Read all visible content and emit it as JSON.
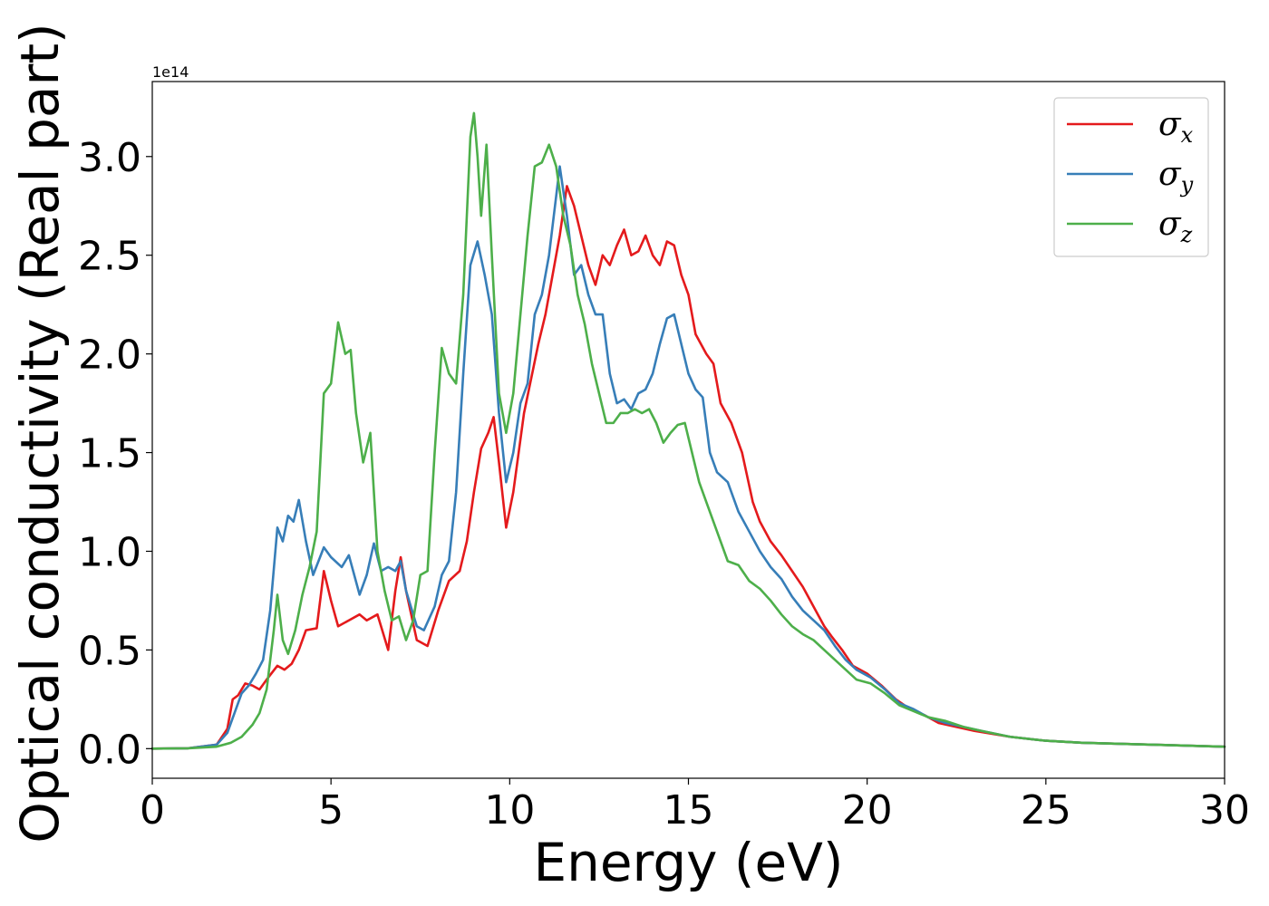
{
  "chart_data": {
    "type": "line",
    "xlabel": "Energy (eV)",
    "ylabel": "Optical conductivity (Real part)",
    "y_offset_label": "1e14",
    "xlim": [
      0,
      30
    ],
    "ylim": [
      -0.15,
      3.38
    ],
    "xticks": [
      0,
      5,
      10,
      15,
      20,
      25,
      30
    ],
    "yticks": [
      0.0,
      0.5,
      1.0,
      1.5,
      2.0,
      2.5,
      3.0
    ],
    "xtick_labels": [
      "0",
      "5",
      "10",
      "15",
      "20",
      "25",
      "30"
    ],
    "ytick_labels": [
      "0.0",
      "0.5",
      "1.0",
      "1.5",
      "2.0",
      "2.5",
      "3.0"
    ],
    "grid": false,
    "legend_position": "top-right",
    "series": [
      {
        "name": "σx",
        "name_base": "σ",
        "name_sub": "x",
        "color": "#e41a1c",
        "points": [
          [
            0,
            0
          ],
          [
            1,
            0.002
          ],
          [
            1.8,
            0.02
          ],
          [
            2.1,
            0.1
          ],
          [
            2.25,
            0.25
          ],
          [
            2.4,
            0.27
          ],
          [
            2.6,
            0.33
          ],
          [
            2.8,
            0.32
          ],
          [
            3.0,
            0.3
          ],
          [
            3.2,
            0.35
          ],
          [
            3.5,
            0.42
          ],
          [
            3.7,
            0.4
          ],
          [
            3.9,
            0.43
          ],
          [
            4.1,
            0.5
          ],
          [
            4.3,
            0.6
          ],
          [
            4.6,
            0.61
          ],
          [
            4.8,
            0.9
          ],
          [
            5.0,
            0.75
          ],
          [
            5.2,
            0.62
          ],
          [
            5.5,
            0.65
          ],
          [
            5.8,
            0.68
          ],
          [
            6.0,
            0.65
          ],
          [
            6.3,
            0.68
          ],
          [
            6.6,
            0.5
          ],
          [
            6.8,
            0.8
          ],
          [
            6.95,
            0.97
          ],
          [
            7.1,
            0.8
          ],
          [
            7.4,
            0.55
          ],
          [
            7.7,
            0.52
          ],
          [
            8.0,
            0.7
          ],
          [
            8.3,
            0.85
          ],
          [
            8.6,
            0.9
          ],
          [
            8.8,
            1.05
          ],
          [
            9.0,
            1.3
          ],
          [
            9.2,
            1.52
          ],
          [
            9.4,
            1.6
          ],
          [
            9.55,
            1.68
          ],
          [
            9.7,
            1.45
          ],
          [
            9.9,
            1.12
          ],
          [
            10.1,
            1.3
          ],
          [
            10.4,
            1.7
          ],
          [
            10.8,
            2.05
          ],
          [
            11.0,
            2.2
          ],
          [
            11.2,
            2.4
          ],
          [
            11.4,
            2.6
          ],
          [
            11.6,
            2.85
          ],
          [
            11.8,
            2.75
          ],
          [
            12.0,
            2.6
          ],
          [
            12.2,
            2.45
          ],
          [
            12.4,
            2.35
          ],
          [
            12.6,
            2.5
          ],
          [
            12.8,
            2.45
          ],
          [
            13.0,
            2.55
          ],
          [
            13.2,
            2.63
          ],
          [
            13.4,
            2.5
          ],
          [
            13.6,
            2.52
          ],
          [
            13.8,
            2.6
          ],
          [
            14.0,
            2.5
          ],
          [
            14.2,
            2.45
          ],
          [
            14.4,
            2.57
          ],
          [
            14.6,
            2.55
          ],
          [
            14.8,
            2.4
          ],
          [
            15.0,
            2.3
          ],
          [
            15.2,
            2.1
          ],
          [
            15.5,
            2.0
          ],
          [
            15.7,
            1.95
          ],
          [
            15.9,
            1.75
          ],
          [
            16.2,
            1.65
          ],
          [
            16.5,
            1.5
          ],
          [
            16.8,
            1.25
          ],
          [
            17.0,
            1.15
          ],
          [
            17.3,
            1.05
          ],
          [
            17.6,
            0.98
          ],
          [
            17.9,
            0.9
          ],
          [
            18.2,
            0.82
          ],
          [
            18.5,
            0.72
          ],
          [
            18.8,
            0.62
          ],
          [
            19.0,
            0.57
          ],
          [
            19.3,
            0.5
          ],
          [
            19.6,
            0.42
          ],
          [
            20.0,
            0.38
          ],
          [
            20.4,
            0.32
          ],
          [
            20.8,
            0.25
          ],
          [
            21.2,
            0.2
          ],
          [
            21.6,
            0.17
          ],
          [
            22.0,
            0.13
          ],
          [
            22.5,
            0.11
          ],
          [
            23.0,
            0.09
          ],
          [
            24.0,
            0.06
          ],
          [
            25.0,
            0.04
          ],
          [
            26.0,
            0.03
          ],
          [
            28.0,
            0.02
          ],
          [
            30.0,
            0.01
          ]
        ]
      },
      {
        "name": "σy",
        "name_base": "σ",
        "name_sub": "y",
        "color": "#377eb8",
        "points": [
          [
            0,
            0
          ],
          [
            1,
            0.002
          ],
          [
            1.8,
            0.02
          ],
          [
            2.1,
            0.08
          ],
          [
            2.3,
            0.18
          ],
          [
            2.5,
            0.28
          ],
          [
            2.7,
            0.32
          ],
          [
            2.9,
            0.38
          ],
          [
            3.1,
            0.45
          ],
          [
            3.3,
            0.7
          ],
          [
            3.5,
            1.12
          ],
          [
            3.65,
            1.05
          ],
          [
            3.8,
            1.18
          ],
          [
            3.95,
            1.15
          ],
          [
            4.1,
            1.26
          ],
          [
            4.3,
            1.05
          ],
          [
            4.5,
            0.88
          ],
          [
            4.8,
            1.02
          ],
          [
            5.0,
            0.97
          ],
          [
            5.3,
            0.92
          ],
          [
            5.5,
            0.98
          ],
          [
            5.8,
            0.78
          ],
          [
            6.0,
            0.88
          ],
          [
            6.2,
            1.04
          ],
          [
            6.4,
            0.9
          ],
          [
            6.6,
            0.92
          ],
          [
            6.8,
            0.9
          ],
          [
            6.95,
            0.95
          ],
          [
            7.1,
            0.8
          ],
          [
            7.4,
            0.62
          ],
          [
            7.6,
            0.6
          ],
          [
            7.9,
            0.72
          ],
          [
            8.1,
            0.88
          ],
          [
            8.3,
            0.95
          ],
          [
            8.5,
            1.3
          ],
          [
            8.7,
            1.9
          ],
          [
            8.9,
            2.45
          ],
          [
            9.1,
            2.57
          ],
          [
            9.3,
            2.4
          ],
          [
            9.5,
            2.2
          ],
          [
            9.7,
            1.7
          ],
          [
            9.9,
            1.35
          ],
          [
            10.1,
            1.5
          ],
          [
            10.3,
            1.75
          ],
          [
            10.5,
            1.85
          ],
          [
            10.7,
            2.2
          ],
          [
            10.9,
            2.3
          ],
          [
            11.1,
            2.5
          ],
          [
            11.3,
            2.8
          ],
          [
            11.4,
            2.95
          ],
          [
            11.6,
            2.7
          ],
          [
            11.8,
            2.4
          ],
          [
            12.0,
            2.45
          ],
          [
            12.2,
            2.3
          ],
          [
            12.4,
            2.2
          ],
          [
            12.6,
            2.2
          ],
          [
            12.8,
            1.9
          ],
          [
            13.0,
            1.75
          ],
          [
            13.2,
            1.77
          ],
          [
            13.4,
            1.72
          ],
          [
            13.6,
            1.8
          ],
          [
            13.8,
            1.82
          ],
          [
            14.0,
            1.9
          ],
          [
            14.2,
            2.05
          ],
          [
            14.4,
            2.18
          ],
          [
            14.6,
            2.2
          ],
          [
            14.8,
            2.05
          ],
          [
            15.0,
            1.9
          ],
          [
            15.2,
            1.82
          ],
          [
            15.4,
            1.78
          ],
          [
            15.6,
            1.5
          ],
          [
            15.8,
            1.4
          ],
          [
            16.1,
            1.35
          ],
          [
            16.4,
            1.2
          ],
          [
            16.7,
            1.1
          ],
          [
            17.0,
            1.0
          ],
          [
            17.3,
            0.92
          ],
          [
            17.6,
            0.86
          ],
          [
            17.9,
            0.77
          ],
          [
            18.2,
            0.7
          ],
          [
            18.5,
            0.65
          ],
          [
            18.8,
            0.6
          ],
          [
            19.1,
            0.52
          ],
          [
            19.4,
            0.45
          ],
          [
            19.7,
            0.4
          ],
          [
            20.1,
            0.36
          ],
          [
            20.5,
            0.3
          ],
          [
            20.9,
            0.23
          ],
          [
            21.3,
            0.2
          ],
          [
            21.7,
            0.16
          ],
          [
            22.2,
            0.13
          ],
          [
            22.7,
            0.11
          ],
          [
            23.2,
            0.09
          ],
          [
            24.0,
            0.06
          ],
          [
            25.0,
            0.04
          ],
          [
            26.0,
            0.03
          ],
          [
            28.0,
            0.02
          ],
          [
            30.0,
            0.01
          ]
        ]
      },
      {
        "name": "σz",
        "name_base": "σ",
        "name_sub": "z",
        "color": "#4daf4a",
        "points": [
          [
            0,
            0
          ],
          [
            1,
            0.002
          ],
          [
            1.8,
            0.01
          ],
          [
            2.2,
            0.03
          ],
          [
            2.5,
            0.06
          ],
          [
            2.8,
            0.12
          ],
          [
            3.0,
            0.18
          ],
          [
            3.2,
            0.3
          ],
          [
            3.4,
            0.6
          ],
          [
            3.5,
            0.78
          ],
          [
            3.65,
            0.55
          ],
          [
            3.8,
            0.48
          ],
          [
            4.0,
            0.6
          ],
          [
            4.2,
            0.78
          ],
          [
            4.4,
            0.92
          ],
          [
            4.6,
            1.1
          ],
          [
            4.8,
            1.8
          ],
          [
            5.0,
            1.85
          ],
          [
            5.2,
            2.16
          ],
          [
            5.4,
            2.0
          ],
          [
            5.55,
            2.02
          ],
          [
            5.7,
            1.7
          ],
          [
            5.9,
            1.45
          ],
          [
            6.1,
            1.6
          ],
          [
            6.3,
            1.0
          ],
          [
            6.5,
            0.8
          ],
          [
            6.7,
            0.65
          ],
          [
            6.9,
            0.67
          ],
          [
            7.1,
            0.55
          ],
          [
            7.3,
            0.65
          ],
          [
            7.5,
            0.88
          ],
          [
            7.7,
            0.9
          ],
          [
            7.9,
            1.5
          ],
          [
            8.1,
            2.03
          ],
          [
            8.3,
            1.9
          ],
          [
            8.5,
            1.85
          ],
          [
            8.7,
            2.3
          ],
          [
            8.9,
            3.1
          ],
          [
            9.0,
            3.22
          ],
          [
            9.1,
            3.0
          ],
          [
            9.2,
            2.7
          ],
          [
            9.35,
            3.06
          ],
          [
            9.5,
            2.5
          ],
          [
            9.7,
            1.8
          ],
          [
            9.9,
            1.6
          ],
          [
            10.1,
            1.8
          ],
          [
            10.3,
            2.2
          ],
          [
            10.5,
            2.6
          ],
          [
            10.7,
            2.95
          ],
          [
            10.9,
            2.97
          ],
          [
            11.1,
            3.06
          ],
          [
            11.3,
            2.95
          ],
          [
            11.5,
            2.7
          ],
          [
            11.7,
            2.55
          ],
          [
            11.9,
            2.3
          ],
          [
            12.1,
            2.15
          ],
          [
            12.3,
            1.95
          ],
          [
            12.5,
            1.8
          ],
          [
            12.7,
            1.65
          ],
          [
            12.9,
            1.65
          ],
          [
            13.1,
            1.7
          ],
          [
            13.3,
            1.7
          ],
          [
            13.5,
            1.72
          ],
          [
            13.7,
            1.7
          ],
          [
            13.9,
            1.72
          ],
          [
            14.1,
            1.65
          ],
          [
            14.3,
            1.55
          ],
          [
            14.5,
            1.6
          ],
          [
            14.7,
            1.64
          ],
          [
            14.9,
            1.65
          ],
          [
            15.1,
            1.5
          ],
          [
            15.3,
            1.35
          ],
          [
            15.5,
            1.25
          ],
          [
            15.7,
            1.15
          ],
          [
            15.9,
            1.05
          ],
          [
            16.1,
            0.95
          ],
          [
            16.4,
            0.93
          ],
          [
            16.7,
            0.85
          ],
          [
            17.0,
            0.81
          ],
          [
            17.3,
            0.75
          ],
          [
            17.6,
            0.68
          ],
          [
            17.9,
            0.62
          ],
          [
            18.2,
            0.58
          ],
          [
            18.5,
            0.55
          ],
          [
            18.8,
            0.5
          ],
          [
            19.1,
            0.45
          ],
          [
            19.4,
            0.4
          ],
          [
            19.7,
            0.35
          ],
          [
            20.1,
            0.33
          ],
          [
            20.5,
            0.28
          ],
          [
            20.9,
            0.22
          ],
          [
            21.3,
            0.19
          ],
          [
            21.7,
            0.16
          ],
          [
            22.2,
            0.14
          ],
          [
            22.7,
            0.11
          ],
          [
            23.2,
            0.09
          ],
          [
            24.0,
            0.06
          ],
          [
            25.0,
            0.04
          ],
          [
            26.0,
            0.03
          ],
          [
            28.0,
            0.02
          ],
          [
            30.0,
            0.01
          ]
        ]
      }
    ]
  }
}
